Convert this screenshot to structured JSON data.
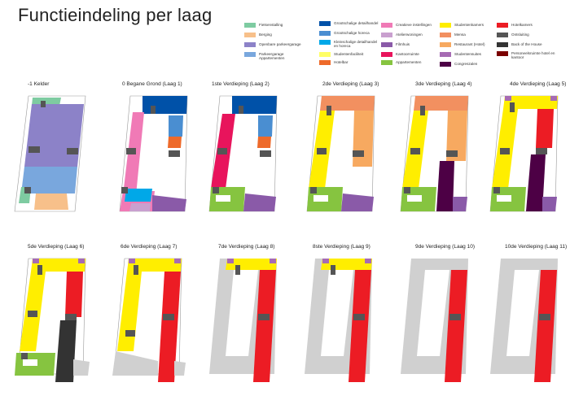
{
  "title": "Functieindeling per laag",
  "legend": [
    {
      "key": "fietsenstalling",
      "label": "Fietsenstalling",
      "color": "#7ecba1"
    },
    {
      "key": "berging",
      "label": "Berging",
      "color": "#f7c08a"
    },
    {
      "key": "openbare",
      "label": "Openbare parkeergarage",
      "color": "#8c82c8"
    },
    {
      "key": "parkeer_app",
      "label": "Parkeergarage Appartementen",
      "color": "#79a7dd"
    },
    {
      "key": "grootschalig_det",
      "label": "Grootschalige detailhandel",
      "color": "#0051a8"
    },
    {
      "key": "grootschalig_hor",
      "label": "Grootschalige horeca",
      "color": "#4a8ed1"
    },
    {
      "key": "kleinschalig",
      "label": "Kleinschalige detailhandel en horeca",
      "color": "#00a8e8"
    },
    {
      "key": "studentenfac",
      "label": "Studentenfaciliteit",
      "color": "#ffff66"
    },
    {
      "key": "hotelbar",
      "label": "Hotelbar",
      "color": "#ee6a2a"
    },
    {
      "key": "creatief",
      "label": "Creatieve instellingen",
      "color": "#f07ab6"
    },
    {
      "key": "atelier",
      "label": "Atelierwoningen",
      "color": "#c9a0cf"
    },
    {
      "key": "filmhuis",
      "label": "Filmhuis",
      "color": "#8a5aa8"
    },
    {
      "key": "kantoor",
      "label": "Kantoorruimte",
      "color": "#e8145c"
    },
    {
      "key": "appartementen",
      "label": "Appartementen",
      "color": "#86c440"
    },
    {
      "key": "studentenkamers",
      "label": "Studentenkamers",
      "color": "#ffee00"
    },
    {
      "key": "mensa",
      "label": "Mensa",
      "color": "#f29060"
    },
    {
      "key": "restaurant",
      "label": "Restaurant (Hotel)",
      "color": "#f7a960"
    },
    {
      "key": "studentensuites",
      "label": "Studentensuites",
      "color": "#a66bb3"
    },
    {
      "key": "congres",
      "label": "Congreszalen",
      "color": "#4d0045"
    },
    {
      "key": "hotelkamers",
      "label": "Hotelkamers",
      "color": "#ec1c24"
    },
    {
      "key": "ontsluiting",
      "label": "Ontsluiting",
      "color": "#555555"
    },
    {
      "key": "back",
      "label": "Back of the House",
      "color": "#333333"
    },
    {
      "key": "personeels",
      "label": "Personeelsruimte hotel en kantoor",
      "color": "#7a0000"
    }
  ],
  "floors": [
    {
      "label": "-1 Kelder"
    },
    {
      "label": "0 Begane Grond (Laag 1)"
    },
    {
      "label": "1ste Verdieping (Laag 2)"
    },
    {
      "label": "2de Verdieping (Laag 3)"
    },
    {
      "label": "3de Verdieping (Laag 4)"
    },
    {
      "label": "4de Verdieping (Laag 5)"
    },
    {
      "label": "5de Verdieping (Laag 6)"
    },
    {
      "label": "6de Verdieping (Laag 7)"
    },
    {
      "label": "7de Verdieping (Laag 8)"
    },
    {
      "label": "8ste Verdieping (Laag 9)"
    },
    {
      "label": "9de Verdieping (Laag 10)"
    },
    {
      "label": "10de Verdieping (Laag 11)"
    }
  ]
}
